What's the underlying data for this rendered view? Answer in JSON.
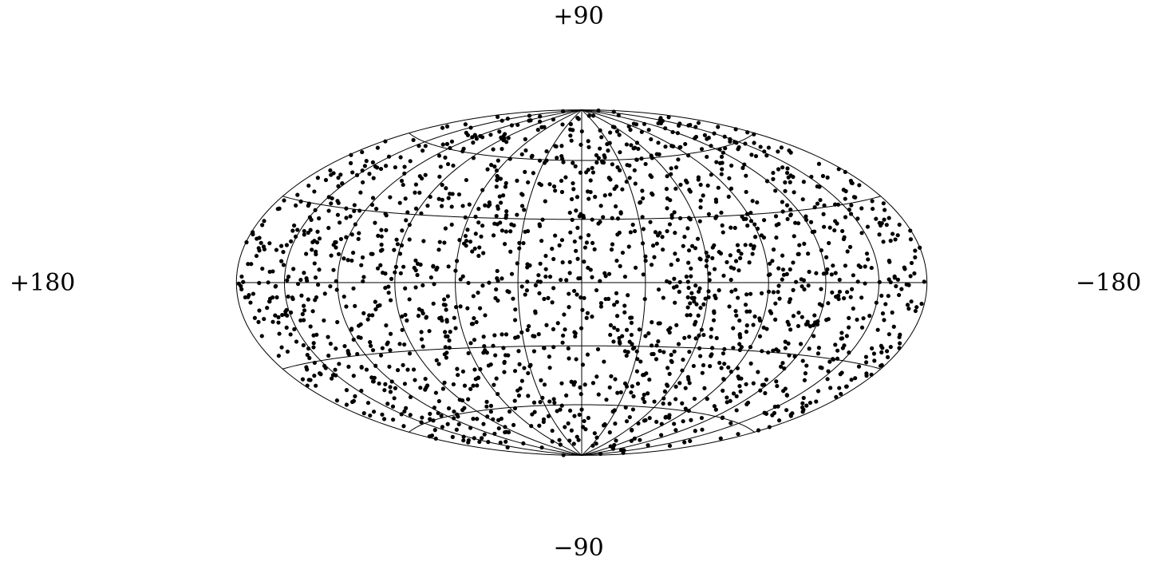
{
  "chart_data": {
    "type": "scatter",
    "projection": "Hammer-Aitoff all-sky",
    "grid": true,
    "title": "",
    "labels": {
      "top": "+90",
      "bottom": "−90",
      "left": "+180",
      "right": "−180"
    },
    "xlim": [
      180,
      -180
    ],
    "ylim": [
      -90,
      90
    ],
    "graticule": {
      "longitudes_deg": [
        -180,
        -150,
        -120,
        -90,
        -60,
        -30,
        0,
        30,
        60,
        90,
        120,
        150,
        180
      ],
      "latitudes_deg": [
        -60,
        -30,
        0,
        30,
        60
      ]
    },
    "series": [
      {
        "marker_color": "#000000",
        "point_count": 1800,
        "distribution": "approximately isotropic over the sphere",
        "points_lon_lat_sample": [
          [
            12,
            71
          ],
          [
            -35,
            64
          ],
          [
            88,
            58
          ],
          [
            -110,
            52
          ],
          [
            145,
            47
          ],
          [
            -160,
            41
          ],
          [
            63,
            36
          ],
          [
            -72,
            30
          ],
          [
            120,
            24
          ],
          [
            -15,
            18
          ],
          [
            170,
            12
          ],
          [
            -140,
            6
          ],
          [
            40,
            2
          ],
          [
            -95,
            -4
          ],
          [
            100,
            -10
          ],
          [
            -5,
            -16
          ],
          [
            155,
            -22
          ],
          [
            -170,
            -28
          ],
          [
            75,
            -34
          ],
          [
            -50,
            -40
          ],
          [
            130,
            -46
          ],
          [
            -125,
            -52
          ],
          [
            25,
            -58
          ],
          [
            -80,
            -64
          ],
          [
            160,
            -70
          ],
          [
            -20,
            -76
          ],
          [
            95,
            80
          ],
          [
            -150,
            76
          ],
          [
            5,
            45
          ],
          [
            -60,
            10
          ],
          [
            110,
            -60
          ],
          [
            -175,
            20
          ],
          [
            50,
            -25
          ],
          [
            -30,
            -50
          ],
          [
            175,
            -5
          ],
          [
            -100,
            35
          ]
        ]
      }
    ]
  }
}
